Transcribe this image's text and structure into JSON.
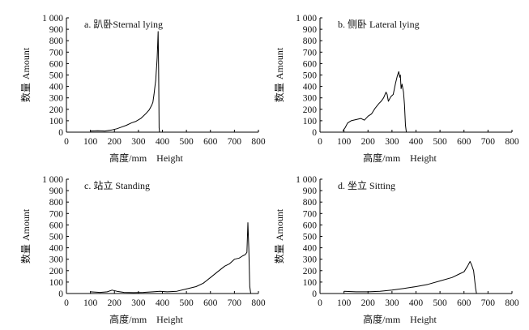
{
  "figure": {
    "x_label_cn": "高度/mm",
    "x_label_en": "Height",
    "y_label_cn": "数量",
    "y_label_en": "Amount"
  },
  "chart_data": [
    {
      "type": "line",
      "title": "a. 趴卧Sternal lying",
      "xlabel": "高度/mm Height",
      "ylabel": "数量 Amount",
      "xlim": [
        0,
        800
      ],
      "ylim": [
        0,
        1000
      ],
      "xticks": [
        "0",
        "100",
        "200",
        "300",
        "400",
        "500",
        "600",
        "700",
        "800"
      ],
      "yticks": [
        "0",
        "100",
        "200",
        "300",
        "400",
        "500",
        "600",
        "700",
        "800",
        "900",
        "1 000"
      ],
      "series": [
        {
          "name": "趴卧 Sternal lying",
          "x": [
            100,
            130,
            160,
            190,
            210,
            230,
            250,
            270,
            290,
            310,
            330,
            345,
            355,
            360,
            365,
            370,
            372,
            374,
            376,
            378,
            380,
            382,
            384,
            386,
            388
          ],
          "y": [
            10,
            12,
            10,
            20,
            30,
            45,
            60,
            80,
            95,
            120,
            160,
            195,
            235,
            260,
            330,
            420,
            450,
            520,
            580,
            650,
            760,
            880,
            560,
            40,
            0
          ]
        }
      ]
    },
    {
      "type": "line",
      "title": "b. 侧卧 Lateral lying",
      "xlabel": "高度/mm Height",
      "ylabel": "数量 Amount",
      "xlim": [
        0,
        800
      ],
      "ylim": [
        0,
        1000
      ],
      "xticks": [
        "0",
        "100",
        "200",
        "300",
        "400",
        "500",
        "600",
        "700",
        "800"
      ],
      "yticks": [
        "0",
        "100",
        "200",
        "300",
        "400",
        "500",
        "600",
        "700",
        "800",
        "900",
        "1 000"
      ],
      "series": [
        {
          "name": "侧卧 Lateral lying",
          "x": [
            95,
            105,
            115,
            130,
            150,
            170,
            185,
            200,
            215,
            230,
            245,
            255,
            265,
            275,
            280,
            285,
            295,
            305,
            315,
            322,
            328,
            332,
            335,
            338,
            342,
            348,
            352,
            356,
            360
          ],
          "y": [
            10,
            40,
            80,
            100,
            110,
            120,
            105,
            140,
            160,
            210,
            250,
            270,
            300,
            350,
            330,
            270,
            310,
            330,
            430,
            490,
            530,
            480,
            500,
            380,
            420,
            350,
            240,
            60,
            0
          ]
        }
      ]
    },
    {
      "type": "line",
      "title": "c. 站立 Standing",
      "xlabel": "高度/mm Height",
      "ylabel": "数量 Amount",
      "xlim": [
        0,
        800
      ],
      "ylim": [
        0,
        1000
      ],
      "xticks": [
        "0",
        "100",
        "200",
        "300",
        "400",
        "500",
        "600",
        "700",
        "800"
      ],
      "yticks": [
        "0",
        "100",
        "200",
        "300",
        "400",
        "500",
        "600",
        "700",
        "800",
        "900",
        "1 000"
      ],
      "series": [
        {
          "name": "站立 Standing",
          "x": [
            100,
            140,
            170,
            190,
            210,
            240,
            280,
            320,
            360,
            390,
            420,
            460,
            500,
            540,
            570,
            600,
            630,
            660,
            680,
            700,
            720,
            735,
            745,
            752,
            756,
            760,
            764,
            768
          ],
          "y": [
            15,
            10,
            15,
            30,
            20,
            10,
            8,
            10,
            15,
            20,
            15,
            20,
            40,
            60,
            90,
            140,
            190,
            240,
            260,
            300,
            310,
            330,
            340,
            360,
            620,
            400,
            60,
            0
          ]
        }
      ]
    },
    {
      "type": "line",
      "title": "d. 坐立 Sitting",
      "xlabel": "高度/mm Height",
      "ylabel": "数量 Amount",
      "xlim": [
        0,
        800
      ],
      "ylim": [
        0,
        1000
      ],
      "xticks": [
        "0",
        "100",
        "200",
        "300",
        "400",
        "500",
        "600",
        "700",
        "800"
      ],
      "yticks": [
        "0",
        "100",
        "200",
        "300",
        "400",
        "500",
        "600",
        "700",
        "800",
        "900",
        "1 000"
      ],
      "series": [
        {
          "name": "坐立 Sitting",
          "x": [
            100,
            150,
            200,
            250,
            300,
            350,
            400,
            450,
            500,
            550,
            580,
            600,
            615,
            625,
            632,
            640,
            648,
            652
          ],
          "y": [
            20,
            15,
            15,
            20,
            30,
            45,
            60,
            80,
            110,
            140,
            170,
            190,
            240,
            280,
            250,
            200,
            50,
            0
          ]
        }
      ]
    }
  ]
}
